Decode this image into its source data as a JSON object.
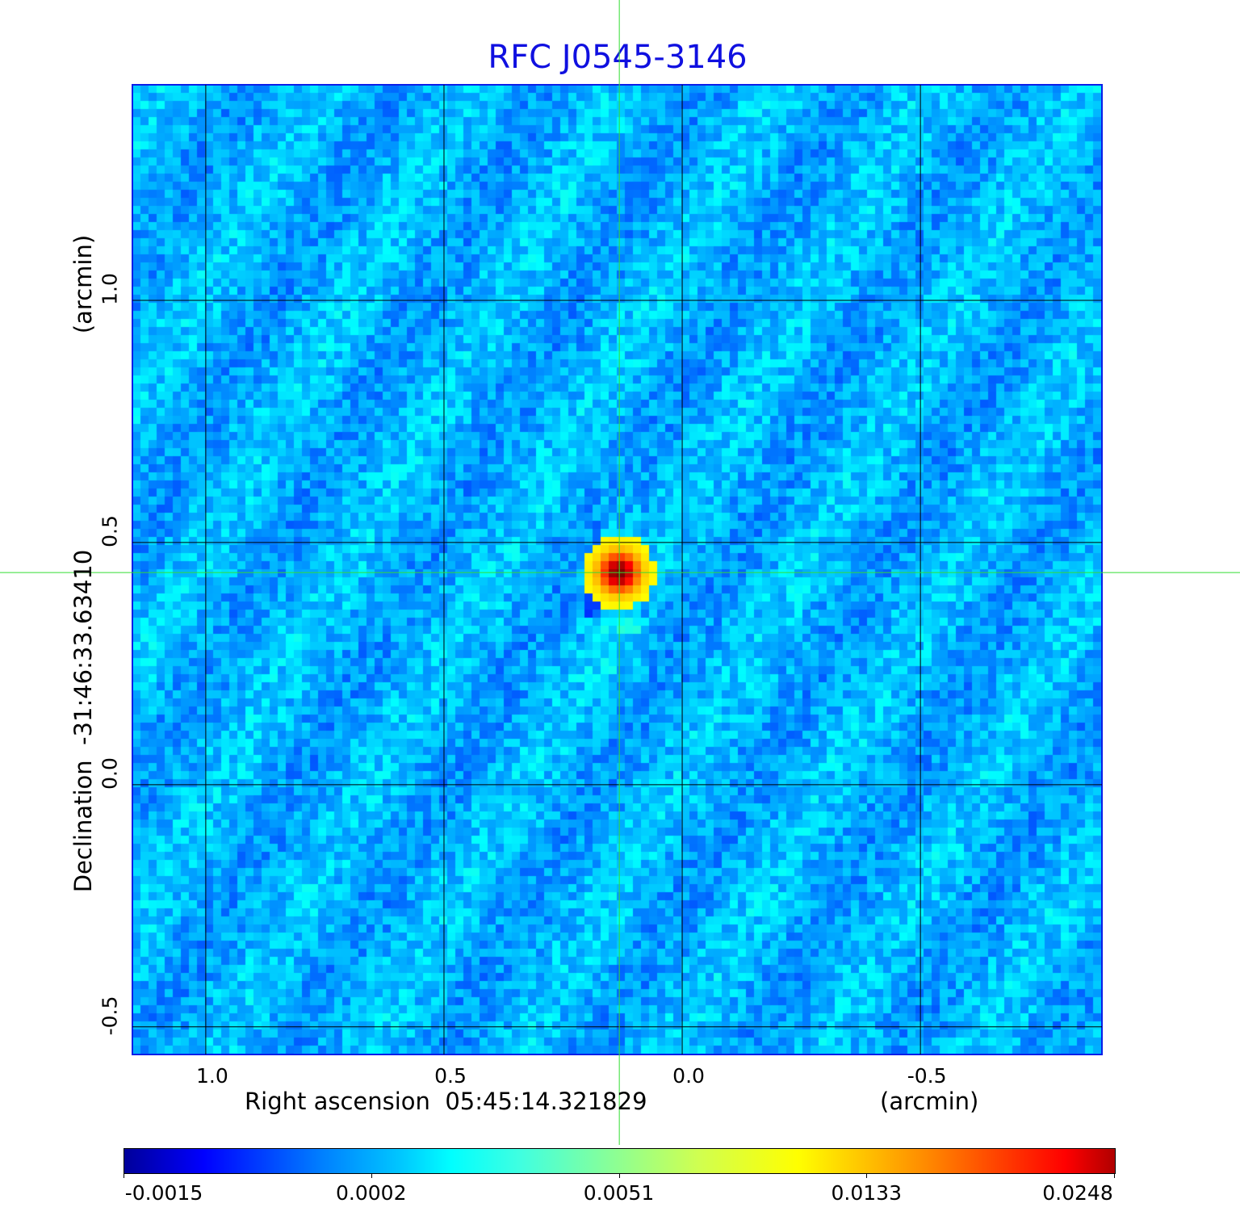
{
  "chart_data": {
    "type": "heatmap",
    "title": "RFC J0545-3146",
    "xlabel": "Right ascension  05:45:14.321829",
    "xunit": "(arcmin)",
    "ylabel": "Declination  -31:46:33.63410",
    "yunit": "(arcmin)",
    "xlim": [
      1.154,
      -0.881
    ],
    "ylim": [
      -0.557,
      1.445
    ],
    "xticks": [
      {
        "value": 1.0,
        "label": "1.0"
      },
      {
        "value": 0.5,
        "label": "0.5"
      },
      {
        "value": 0.0,
        "label": "0.0"
      },
      {
        "value": -0.5,
        "label": "-0.5"
      }
    ],
    "yticks": [
      {
        "value": 1.0,
        "label": "1.0"
      },
      {
        "value": 0.5,
        "label": "0.5"
      },
      {
        "value": 0.0,
        "label": "0.0"
      },
      {
        "value": -0.5,
        "label": "-0.5"
      }
    ],
    "grid": true,
    "crosshair": {
      "x": 0.132,
      "y": 0.438
    },
    "source_peak": {
      "x": 0.132,
      "y": 0.438,
      "value": 0.0248
    },
    "colormap": "jet",
    "colorbar": {
      "placement": "bottom",
      "ticks": [
        "-0.0015",
        "0.0002",
        "0.0051",
        "0.0133",
        "0.0248"
      ],
      "range": [
        -0.0015,
        0.0248
      ]
    }
  },
  "colors": {
    "title": "#1010e0",
    "frame": "#0a1ee8",
    "crosshair": "#33dd33",
    "grid": "#000000"
  }
}
